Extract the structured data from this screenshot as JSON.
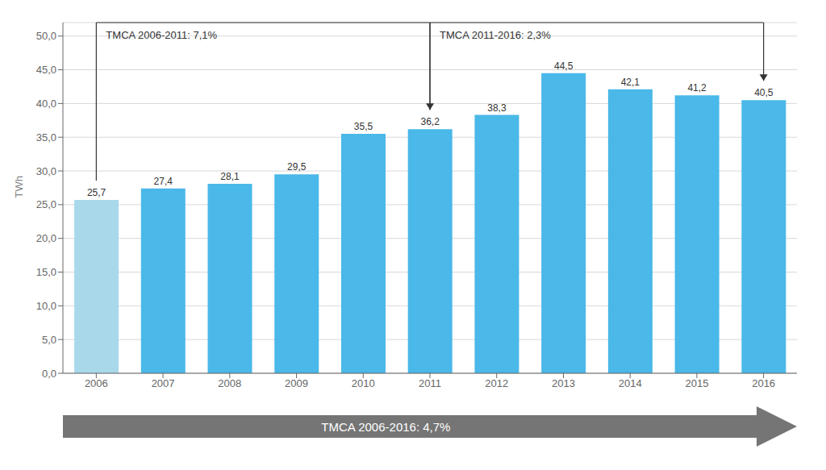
{
  "chart_data": {
    "type": "bar",
    "categories": [
      "2006",
      "2007",
      "2008",
      "2009",
      "2010",
      "2011",
      "2012",
      "2013",
      "2014",
      "2015",
      "2016"
    ],
    "values": [
      25.7,
      27.4,
      28.1,
      29.5,
      35.5,
      36.2,
      38.3,
      44.5,
      42.1,
      41.2,
      40.5
    ],
    "value_labels": [
      "25,7",
      "27,4",
      "28,1",
      "29,5",
      "35,5",
      "36,2",
      "38,3",
      "44,5",
      "42,1",
      "41,2",
      "40,5"
    ],
    "colors": [
      "#a8d8ea",
      "#4ab8e8",
      "#4ab8e8",
      "#4ab8e8",
      "#4ab8e8",
      "#4ab8e8",
      "#4ab8e8",
      "#4ab8e8",
      "#4ab8e8",
      "#4ab8e8",
      "#4ab8e8"
    ],
    "ylabel": "TWh",
    "ylim": [
      0,
      52
    ],
    "yticks": [
      {
        "value": 0,
        "label": "0,0"
      },
      {
        "value": 5,
        "label": "5,0"
      },
      {
        "value": 10,
        "label": "10,0"
      },
      {
        "value": 15,
        "label": "15,0"
      },
      {
        "value": 20,
        "label": "20,0"
      },
      {
        "value": 25,
        "label": "25,0"
      },
      {
        "value": 30,
        "label": "30,0"
      },
      {
        "value": 35,
        "label": "35,0"
      },
      {
        "value": 40,
        "label": "40,0"
      },
      {
        "value": 45,
        "label": "45,0"
      },
      {
        "value": 50,
        "label": "50,0"
      }
    ],
    "grid": true,
    "data_labels": true,
    "annotations": [
      {
        "text": "TMCA 2006-2011: 7,1%",
        "from": "2006",
        "to": "2011"
      },
      {
        "text": "TMCA 2011-2016: 2,3%",
        "from": "2011",
        "to": "2016"
      },
      {
        "text": "TMCA 2006-2016: 4,7%",
        "from": "2006",
        "to": "2016",
        "color": "#757575"
      }
    ]
  }
}
